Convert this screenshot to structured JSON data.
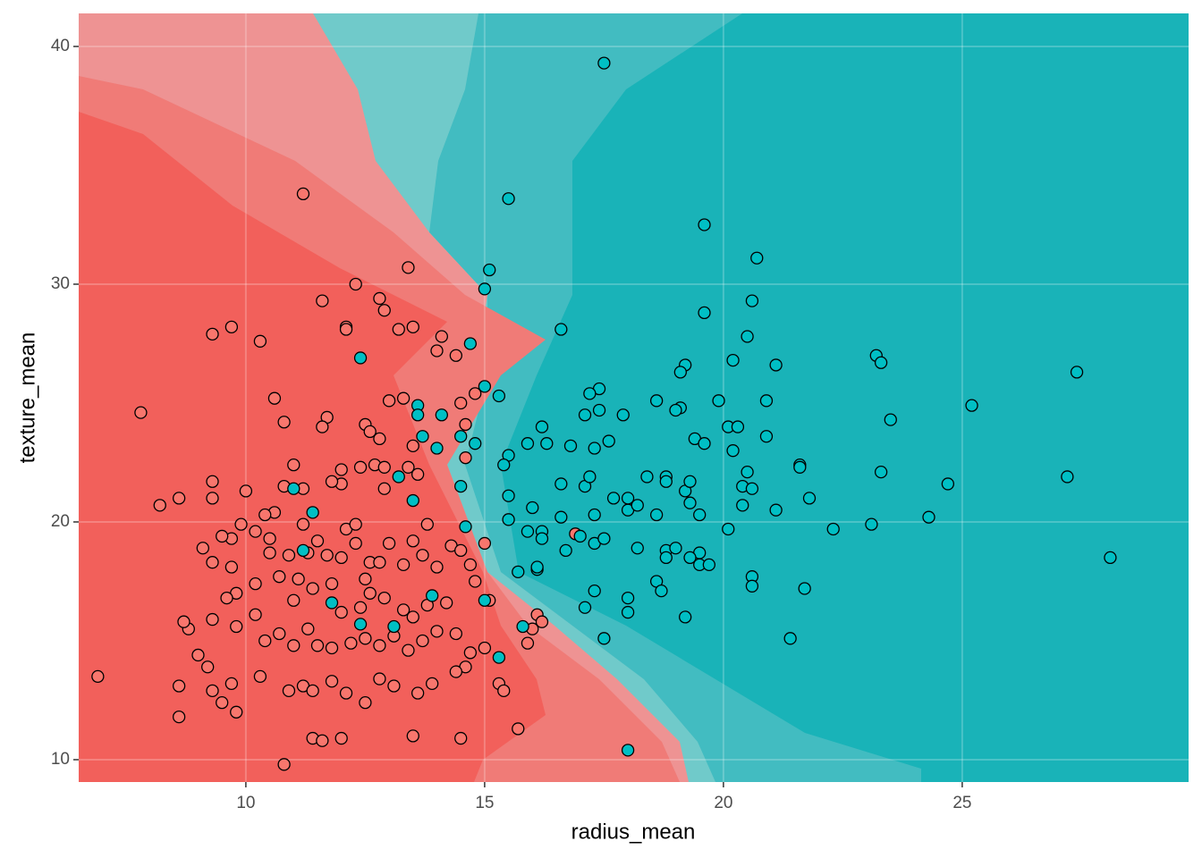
{
  "chart_data": {
    "type": "scatter",
    "xlabel": "radius_mean",
    "ylabel": "texture_mean",
    "xlim": [
      6.5,
      29.74
    ],
    "ylim": [
      9.06,
      41.39
    ],
    "xticks": [
      10,
      15,
      20,
      25
    ],
    "yticks": [
      10,
      20,
      30,
      40
    ],
    "grid": true,
    "series": [
      {
        "color": "#F8766D",
        "x": [
          14.6,
          14.6,
          14.8,
          14.5,
          13.3,
          13.0,
          13.5,
          16.9,
          11.2,
          13.4,
          12.3,
          12.8,
          12.9,
          11.6,
          12.1,
          12.1,
          13.2,
          13.5,
          9.7,
          9.3,
          10.3,
          14.1,
          14.4,
          14.0,
          7.8,
          10.6,
          10.8,
          11.7,
          11.6,
          12.5,
          12.6,
          12.8,
          12.0,
          11.0,
          12.4,
          12.7,
          12.9,
          13.4,
          13.6,
          12.9,
          12.0,
          11.8,
          11.2,
          10.8,
          9.3,
          9.3,
          10.0,
          8.2,
          8.6,
          10.6,
          10.4,
          9.9,
          9.7,
          9.5,
          9.1,
          9.3,
          9.7,
          10.2,
          10.5,
          10.5,
          10.9,
          11.2,
          11.3,
          11.5,
          11.7,
          12.0,
          12.1,
          12.3,
          12.3,
          12.6,
          12.5,
          12.8,
          13.0,
          13.3,
          13.5,
          13.7,
          13.8,
          14.0,
          14.3,
          14.5,
          14.7,
          15.0,
          14.8,
          15.1,
          14.2,
          13.8,
          13.5,
          13.3,
          12.9,
          12.6,
          12.4,
          12.0,
          11.8,
          11.4,
          11.1,
          11.0,
          10.7,
          10.2,
          9.8,
          9.6,
          9.3,
          9.8,
          10.2,
          10.4,
          10.7,
          11.0,
          11.3,
          11.5,
          11.8,
          12.2,
          12.5,
          12.8,
          13.1,
          13.4,
          13.7,
          14.0,
          14.4,
          14.7,
          15.0,
          14.6,
          14.4,
          13.9,
          13.6,
          13.1,
          12.8,
          12.5,
          12.1,
          11.8,
          11.2,
          11.4,
          10.9,
          10.3,
          9.7,
          9.3,
          9.5,
          9.8,
          8.6,
          8.6,
          6.9,
          9.0,
          9.2,
          8.8,
          8.7,
          11.4,
          11.6,
          12.0,
          10.8,
          13.5,
          14.5,
          15.7,
          15.3,
          15.4,
          15.9,
          16.0,
          16.1,
          16.2
        ],
        "values": [
          22.7,
          24.1,
          25.4,
          25.0,
          25.2,
          25.1,
          23.2,
          19.5,
          33.8,
          30.7,
          30.0,
          29.4,
          28.9,
          29.3,
          28.2,
          28.1,
          28.1,
          28.2,
          28.2,
          27.9,
          27.6,
          27.8,
          27.0,
          27.2,
          24.6,
          25.2,
          24.2,
          24.4,
          24.0,
          24.1,
          23.8,
          23.5,
          22.2,
          22.4,
          22.3,
          22.4,
          22.3,
          22.3,
          22.0,
          21.4,
          21.6,
          21.7,
          21.4,
          21.5,
          21.7,
          21.0,
          21.3,
          20.7,
          21.0,
          20.4,
          20.3,
          19.9,
          19.3,
          19.4,
          18.9,
          18.3,
          18.1,
          19.6,
          19.3,
          18.7,
          18.6,
          19.9,
          18.7,
          19.2,
          18.6,
          18.5,
          19.7,
          19.9,
          19.1,
          18.3,
          17.6,
          18.3,
          19.1,
          18.2,
          19.2,
          18.6,
          19.9,
          18.1,
          19.0,
          18.8,
          18.2,
          19.1,
          17.5,
          16.7,
          16.6,
          16.5,
          16.0,
          16.3,
          16.8,
          17.0,
          16.4,
          16.2,
          17.4,
          17.2,
          17.6,
          16.7,
          17.7,
          17.4,
          17.0,
          16.8,
          15.9,
          15.6,
          16.1,
          15.0,
          15.3,
          14.8,
          15.5,
          14.8,
          14.7,
          14.9,
          15.1,
          14.8,
          15.2,
          14.6,
          15.0,
          15.4,
          15.3,
          14.5,
          14.7,
          13.9,
          13.7,
          13.2,
          12.8,
          13.1,
          13.4,
          12.4,
          12.8,
          13.3,
          13.1,
          12.9,
          12.9,
          13.5,
          13.2,
          12.9,
          12.4,
          12.0,
          13.1,
          11.8,
          13.5,
          14.4,
          13.9,
          15.5,
          15.8,
          10.9,
          10.8,
          10.9,
          9.8,
          11.0,
          10.9,
          11.3,
          13.2,
          12.9,
          14.9,
          15.5,
          16.1,
          15.8
        ]
      },
      {
        "color": "#00BFC4",
        "x": [
          17.5,
          15.5,
          19.6,
          20.7,
          15.1,
          15.0,
          20.6,
          19.6,
          16.6,
          20.5,
          23.2,
          23.3,
          20.2,
          21.1,
          19.2,
          19.1,
          27.4,
          14.7,
          12.4,
          25.2,
          23.5,
          17.4,
          17.2,
          18.6,
          19.9,
          19.1,
          19.0,
          20.9,
          17.4,
          17.1,
          17.9,
          15.0,
          15.3,
          13.6,
          13.6,
          14.1,
          20.1,
          20.3,
          16.2,
          19.4,
          19.6,
          20.9,
          17.6,
          17.3,
          16.8,
          16.3,
          15.9,
          15.5,
          15.4,
          14.8,
          14.0,
          13.7,
          14.5,
          20.2,
          21.6,
          21.6,
          23.3,
          27.2,
          24.7,
          19.2,
          19.3,
          18.8,
          20.5,
          20.4,
          20.6,
          16.6,
          17.1,
          17.2,
          17.7,
          18.4,
          18.8,
          19.3,
          20.4,
          21.1,
          21.8,
          18.0,
          18.0,
          18.2,
          18.6,
          16.6,
          17.3,
          16.0,
          15.5,
          15.5,
          15.9,
          16.2,
          16.2,
          17.0,
          17.3,
          17.5,
          19.5,
          20.1,
          22.3,
          23.1,
          24.3,
          18.2,
          18.8,
          19.0,
          19.5,
          19.3,
          19.5,
          19.7,
          18.8,
          18.6,
          18.7,
          20.6,
          20.6,
          21.7,
          17.3,
          18.0,
          18.0,
          19.2,
          17.1,
          17.5,
          21.4,
          15.3,
          18.0,
          28.1,
          12.4,
          13.1,
          11.8,
          13.9,
          15.0,
          11.2,
          11.4,
          11.0,
          13.5,
          13.2,
          14.5,
          14.6,
          15.7,
          16.1,
          16.1,
          16.7,
          15.8
        ],
        "values": [
          39.3,
          33.6,
          32.5,
          31.1,
          30.6,
          29.8,
          29.3,
          28.8,
          28.1,
          27.8,
          27.0,
          26.7,
          26.8,
          26.6,
          26.6,
          26.3,
          26.3,
          27.5,
          26.9,
          24.9,
          24.3,
          25.6,
          25.4,
          25.1,
          25.1,
          24.8,
          24.7,
          25.1,
          24.7,
          24.5,
          24.5,
          25.7,
          25.3,
          24.9,
          24.5,
          24.5,
          24.0,
          24.0,
          24.0,
          23.5,
          23.3,
          23.6,
          23.4,
          23.1,
          23.2,
          23.3,
          23.3,
          22.8,
          22.4,
          23.3,
          23.1,
          23.6,
          23.6,
          23.0,
          22.4,
          22.3,
          22.1,
          21.9,
          21.6,
          21.3,
          21.7,
          21.9,
          22.1,
          21.5,
          21.4,
          21.6,
          21.5,
          21.9,
          21.0,
          21.9,
          21.7,
          20.8,
          20.7,
          20.5,
          21.0,
          21.0,
          20.5,
          20.7,
          20.3,
          20.2,
          20.3,
          20.6,
          21.1,
          20.1,
          19.6,
          19.6,
          19.3,
          19.4,
          19.1,
          19.3,
          20.3,
          19.7,
          19.7,
          19.9,
          20.2,
          18.9,
          18.8,
          18.9,
          18.7,
          18.5,
          18.2,
          18.2,
          18.5,
          17.5,
          17.1,
          17.7,
          17.3,
          17.2,
          17.1,
          16.8,
          16.2,
          16.0,
          16.4,
          15.1,
          15.1,
          14.3,
          10.4,
          18.5,
          15.7,
          15.6,
          16.6,
          16.9,
          16.7,
          18.8,
          20.4,
          21.4,
          20.9,
          21.9,
          21.5,
          19.8,
          17.9,
          18.0,
          18.1,
          18.8,
          15.6
        ]
      }
    ]
  }
}
